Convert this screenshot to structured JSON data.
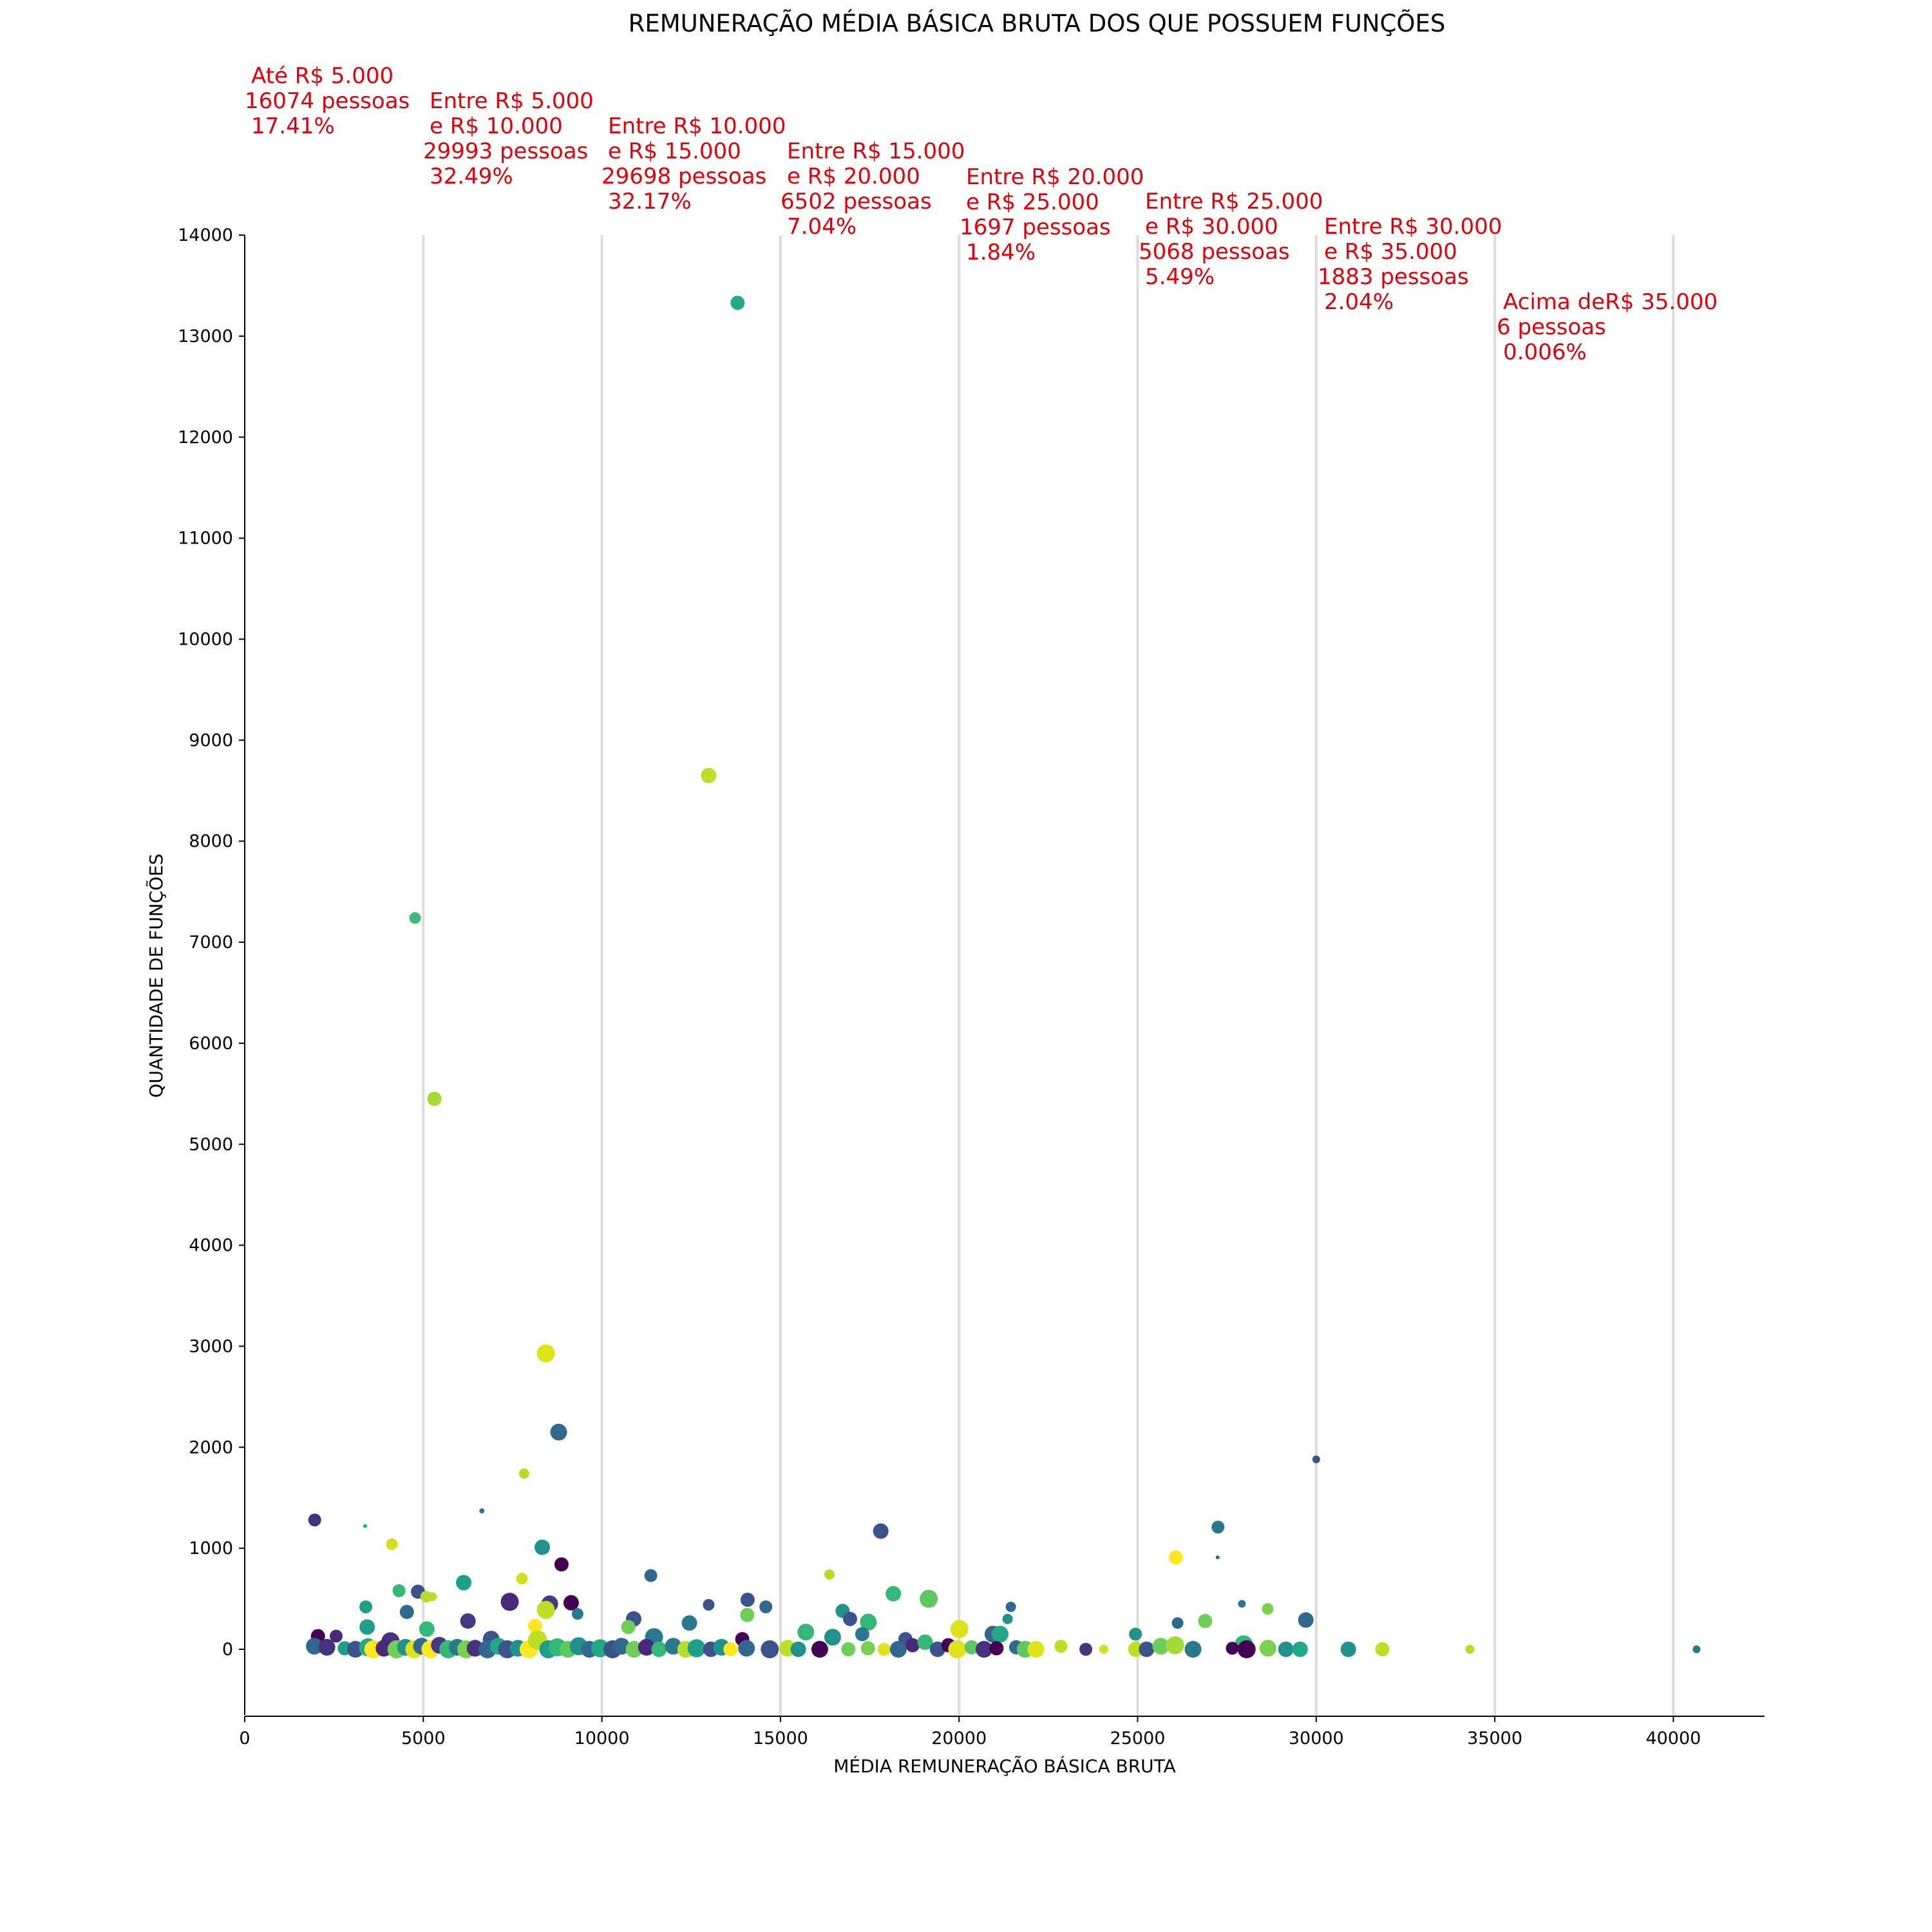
{
  "chart_data": {
    "type": "scatter",
    "title": "REMUNERAÇÃO MÉDIA BÁSICA BRUTA DOS QUE POSSUEM FUNÇÕES",
    "xlabel": "MÉDIA REMUNERAÇÃO BÁSICA BRUTA",
    "ylabel": "QUANTIDADE DE FUNÇÕES",
    "xlim": [
      0,
      42500
    ],
    "ylim": [
      -650,
      14000
    ],
    "xticks": [
      "0",
      "5000",
      "10000",
      "15000",
      "20000",
      "25000",
      "30000",
      "35000",
      "40000"
    ],
    "yticks": [
      "0",
      "1000",
      "2000",
      "3000",
      "4000",
      "5000",
      "6000",
      "7000",
      "8000",
      "9000",
      "10000",
      "11000",
      "12000",
      "13000",
      "14000"
    ],
    "grid": "vertical lines at 5000-step boundaries",
    "colormap": "viridis",
    "band_lines": [
      5000,
      10000,
      15000,
      20000,
      25000,
      30000,
      35000,
      40000
    ],
    "bands": [
      {
        "lines": [
          "Até R$ 5.000",
          "16074 pessoas",
          "17.41%"
        ]
      },
      {
        "lines": [
          "Entre R$ 5.000",
          "e R$ 10.000",
          "29993 pessoas",
          "32.49%"
        ]
      },
      {
        "lines": [
          "Entre R$ 10.000",
          "e R$ 15.000",
          "29698 pessoas",
          "32.17%"
        ]
      },
      {
        "lines": [
          "Entre R$ 15.000",
          "e R$ 20.000",
          "6502 pessoas",
          "7.04%"
        ]
      },
      {
        "lines": [
          "Entre R$ 20.000",
          "e R$ 25.000",
          "1697 pessoas",
          "1.84%"
        ]
      },
      {
        "lines": [
          "Entre R$ 25.000",
          "e R$ 30.000",
          "5068 pessoas",
          "5.49%"
        ]
      },
      {
        "lines": [
          "Entre R$ 30.000",
          "e R$ 35.000",
          "1883 pessoas",
          "2.04%"
        ]
      },
      {
        "lines": [
          "Acima deR$ 35.000",
          "6 pessoas",
          "0.006%"
        ]
      }
    ],
    "points": [
      {
        "x": 13800,
        "y": 13330,
        "s": 11,
        "c": "#22a884"
      },
      {
        "x": 12990,
        "y": 8650,
        "s": 12,
        "c": "#bddf26"
      },
      {
        "x": 4770,
        "y": 7240,
        "s": 9,
        "c": "#3fbc73"
      },
      {
        "x": 5310,
        "y": 5450,
        "s": 11,
        "c": "#a5db36"
      },
      {
        "x": 8430,
        "y": 2930,
        "s": 14,
        "c": "#dde318"
      },
      {
        "x": 8790,
        "y": 2150,
        "s": 13,
        "c": "#31688e"
      },
      {
        "x": 30000,
        "y": 1880,
        "s": 6,
        "c": "#3b528b"
      },
      {
        "x": 7820,
        "y": 1740,
        "s": 8,
        "c": "#b5de2b"
      },
      {
        "x": 1960,
        "y": 1280,
        "s": 10,
        "c": "#46327e"
      },
      {
        "x": 27250,
        "y": 1210,
        "s": 10,
        "c": "#2a788e"
      },
      {
        "x": 3370,
        "y": 1220,
        "s": 3,
        "c": "#22a884"
      },
      {
        "x": 6640,
        "y": 1370,
        "s": 4,
        "c": "#2a788e"
      },
      {
        "x": 17810,
        "y": 1170,
        "s": 12,
        "c": "#3b528b"
      },
      {
        "x": 4120,
        "y": 1040,
        "s": 9,
        "c": "#d0e11c"
      },
      {
        "x": 8330,
        "y": 1010,
        "s": 12,
        "c": "#21918c"
      },
      {
        "x": 26070,
        "y": 910,
        "s": 11,
        "c": "#fde725"
      },
      {
        "x": 27240,
        "y": 910,
        "s": 3,
        "c": "#31688e"
      },
      {
        "x": 8870,
        "y": 840,
        "s": 11,
        "c": "#440154"
      },
      {
        "x": 11370,
        "y": 730,
        "s": 10,
        "c": "#31688e"
      },
      {
        "x": 16370,
        "y": 740,
        "s": 8,
        "c": "#b5de2b"
      },
      {
        "x": 6130,
        "y": 660,
        "s": 12,
        "c": "#1f9e89"
      },
      {
        "x": 7760,
        "y": 700,
        "s": 9,
        "c": "#d0e11c"
      },
      {
        "x": 4320,
        "y": 580,
        "s": 10,
        "c": "#35b779"
      },
      {
        "x": 4850,
        "y": 570,
        "s": 11,
        "c": "#3b528b"
      },
      {
        "x": 18160,
        "y": 550,
        "s": 12,
        "c": "#35b779"
      },
      {
        "x": 19150,
        "y": 500,
        "s": 14,
        "c": "#5ec962"
      },
      {
        "x": 5080,
        "y": 520,
        "s": 9,
        "c": "#b5de2b"
      },
      {
        "x": 5250,
        "y": 520,
        "s": 7,
        "c": "#b5de2b"
      },
      {
        "x": 7420,
        "y": 470,
        "s": 14,
        "c": "#482878"
      },
      {
        "x": 8540,
        "y": 450,
        "s": 13,
        "c": "#443983"
      },
      {
        "x": 9140,
        "y": 460,
        "s": 12,
        "c": "#440154"
      },
      {
        "x": 14080,
        "y": 490,
        "s": 11,
        "c": "#3b528b"
      },
      {
        "x": 12990,
        "y": 440,
        "s": 9,
        "c": "#3b528b"
      },
      {
        "x": 14590,
        "y": 420,
        "s": 10,
        "c": "#31688e"
      },
      {
        "x": 21450,
        "y": 420,
        "s": 8,
        "c": "#31688e"
      },
      {
        "x": 27920,
        "y": 450,
        "s": 6,
        "c": "#2a788e"
      },
      {
        "x": 28640,
        "y": 400,
        "s": 9,
        "c": "#7ad151"
      },
      {
        "x": 3390,
        "y": 420,
        "s": 10,
        "c": "#1f9e89"
      },
      {
        "x": 4540,
        "y": 370,
        "s": 11,
        "c": "#31688e"
      },
      {
        "x": 8430,
        "y": 390,
        "s": 14,
        "c": "#bddf26"
      },
      {
        "x": 9320,
        "y": 350,
        "s": 9,
        "c": "#2a788e"
      },
      {
        "x": 14070,
        "y": 340,
        "s": 11,
        "c": "#6ece58"
      },
      {
        "x": 16740,
        "y": 380,
        "s": 11,
        "c": "#21918c"
      },
      {
        "x": 16950,
        "y": 300,
        "s": 11,
        "c": "#3b528b"
      },
      {
        "x": 21360,
        "y": 300,
        "s": 8,
        "c": "#21918c"
      },
      {
        "x": 29710,
        "y": 290,
        "s": 12,
        "c": "#31688e"
      },
      {
        "x": 26890,
        "y": 280,
        "s": 11,
        "c": "#6ece58"
      },
      {
        "x": 6250,
        "y": 280,
        "s": 12,
        "c": "#443983"
      },
      {
        "x": 10890,
        "y": 300,
        "s": 12,
        "c": "#3b528b"
      },
      {
        "x": 12450,
        "y": 260,
        "s": 12,
        "c": "#2a788e"
      },
      {
        "x": 17460,
        "y": 270,
        "s": 13,
        "c": "#35b779"
      },
      {
        "x": 26120,
        "y": 260,
        "s": 9,
        "c": "#31688e"
      },
      {
        "x": 3430,
        "y": 220,
        "s": 12,
        "c": "#1f9e89"
      },
      {
        "x": 5100,
        "y": 200,
        "s": 12,
        "c": "#35b779"
      },
      {
        "x": 8130,
        "y": 230,
        "s": 11,
        "c": "#fde725"
      },
      {
        "x": 10740,
        "y": 220,
        "s": 11,
        "c": "#6ece58"
      },
      {
        "x": 15710,
        "y": 170,
        "s": 13,
        "c": "#35b779"
      },
      {
        "x": 20010,
        "y": 200,
        "s": 14,
        "c": "#dde318"
      },
      {
        "x": 20950,
        "y": 150,
        "s": 13,
        "c": "#31688e"
      },
      {
        "x": 21150,
        "y": 150,
        "s": 13,
        "c": "#22a884"
      },
      {
        "x": 17290,
        "y": 150,
        "s": 11,
        "c": "#2a788e"
      },
      {
        "x": 24940,
        "y": 150,
        "s": 10,
        "c": "#21918c"
      },
      {
        "x": 27970,
        "y": 50,
        "s": 14,
        "c": "#35b779"
      },
      {
        "x": 2050,
        "y": 130,
        "s": 11,
        "c": "#440154"
      },
      {
        "x": 2560,
        "y": 130,
        "s": 10,
        "c": "#482878"
      },
      {
        "x": 4080,
        "y": 80,
        "s": 14,
        "c": "#46327e"
      },
      {
        "x": 6900,
        "y": 100,
        "s": 13,
        "c": "#3b528b"
      },
      {
        "x": 11460,
        "y": 120,
        "s": 14,
        "c": "#2a788e"
      },
      {
        "x": 13930,
        "y": 100,
        "s": 11,
        "c": "#440154"
      },
      {
        "x": 16460,
        "y": 120,
        "s": 13,
        "c": "#21918c"
      },
      {
        "x": 18500,
        "y": 100,
        "s": 11,
        "c": "#3b528b"
      },
      {
        "x": 1950,
        "y": 30,
        "s": 13,
        "c": "#31688e"
      },
      {
        "x": 2300,
        "y": 20,
        "s": 13,
        "c": "#46327e"
      },
      {
        "x": 2800,
        "y": 10,
        "s": 11,
        "c": "#1f9e89"
      },
      {
        "x": 3100,
        "y": 0,
        "s": 13,
        "c": "#3b528b"
      },
      {
        "x": 3450,
        "y": 20,
        "s": 14,
        "c": "#22a884"
      },
      {
        "x": 3600,
        "y": 0,
        "s": 14,
        "c": "#fde725"
      },
      {
        "x": 3900,
        "y": 10,
        "s": 13,
        "c": "#482878"
      },
      {
        "x": 4250,
        "y": 0,
        "s": 14,
        "c": "#6ece58"
      },
      {
        "x": 4500,
        "y": 20,
        "s": 13,
        "c": "#21918c"
      },
      {
        "x": 4750,
        "y": 0,
        "s": 14,
        "c": "#dde318"
      },
      {
        "x": 4950,
        "y": 30,
        "s": 13,
        "c": "#31688e"
      },
      {
        "x": 5200,
        "y": 0,
        "s": 14,
        "c": "#fde725"
      },
      {
        "x": 5450,
        "y": 40,
        "s": 13,
        "c": "#443983"
      },
      {
        "x": 5700,
        "y": 0,
        "s": 14,
        "c": "#35b779"
      },
      {
        "x": 5950,
        "y": 20,
        "s": 13,
        "c": "#2a788e"
      },
      {
        "x": 6200,
        "y": 0,
        "s": 14,
        "c": "#7ad151"
      },
      {
        "x": 6450,
        "y": 10,
        "s": 13,
        "c": "#46327e"
      },
      {
        "x": 6800,
        "y": 0,
        "s": 14,
        "c": "#31688e"
      },
      {
        "x": 7100,
        "y": 30,
        "s": 13,
        "c": "#22a884"
      },
      {
        "x": 7350,
        "y": 0,
        "s": 14,
        "c": "#3b528b"
      },
      {
        "x": 7650,
        "y": 10,
        "s": 13,
        "c": "#21918c"
      },
      {
        "x": 7950,
        "y": 0,
        "s": 14,
        "c": "#fde725"
      },
      {
        "x": 8200,
        "y": 90,
        "s": 15,
        "c": "#bddf26"
      },
      {
        "x": 8500,
        "y": 0,
        "s": 14,
        "c": "#1f9e89"
      },
      {
        "x": 8750,
        "y": 20,
        "s": 14,
        "c": "#35b779"
      },
      {
        "x": 9050,
        "y": 0,
        "s": 13,
        "c": "#5ec962"
      },
      {
        "x": 9350,
        "y": 30,
        "s": 14,
        "c": "#21918c"
      },
      {
        "x": 9650,
        "y": 0,
        "s": 13,
        "c": "#31688e"
      },
      {
        "x": 9950,
        "y": 10,
        "s": 14,
        "c": "#22a884"
      },
      {
        "x": 10300,
        "y": 0,
        "s": 14,
        "c": "#3b528b"
      },
      {
        "x": 10550,
        "y": 30,
        "s": 13,
        "c": "#31688e"
      },
      {
        "x": 10900,
        "y": 0,
        "s": 13,
        "c": "#6ece58"
      },
      {
        "x": 11250,
        "y": 20,
        "s": 13,
        "c": "#482878"
      },
      {
        "x": 11600,
        "y": 0,
        "s": 12,
        "c": "#35b779"
      },
      {
        "x": 12000,
        "y": 30,
        "s": 13,
        "c": "#2a788e"
      },
      {
        "x": 12350,
        "y": 0,
        "s": 13,
        "c": "#b5de2b"
      },
      {
        "x": 12650,
        "y": 10,
        "s": 14,
        "c": "#1f9e89"
      },
      {
        "x": 13050,
        "y": 0,
        "s": 12,
        "c": "#3b528b"
      },
      {
        "x": 13350,
        "y": 20,
        "s": 13,
        "c": "#21918c"
      },
      {
        "x": 13600,
        "y": 0,
        "s": 11,
        "c": "#fde725"
      },
      {
        "x": 14050,
        "y": 10,
        "s": 13,
        "c": "#31688e"
      },
      {
        "x": 14700,
        "y": 0,
        "s": 14,
        "c": "#3b528b"
      },
      {
        "x": 15200,
        "y": 10,
        "s": 13,
        "c": "#bddf26"
      },
      {
        "x": 15500,
        "y": 0,
        "s": 12,
        "c": "#21918c"
      },
      {
        "x": 16100,
        "y": 0,
        "s": 13,
        "c": "#440154"
      },
      {
        "x": 16900,
        "y": 0,
        "s": 11,
        "c": "#6ece58"
      },
      {
        "x": 17450,
        "y": 10,
        "s": 11,
        "c": "#7ad151"
      },
      {
        "x": 17900,
        "y": 0,
        "s": 10,
        "c": "#dde318"
      },
      {
        "x": 18300,
        "y": 0,
        "s": 13,
        "c": "#31688e"
      },
      {
        "x": 18700,
        "y": 40,
        "s": 11,
        "c": "#482878"
      },
      {
        "x": 19050,
        "y": 70,
        "s": 12,
        "c": "#35b779"
      },
      {
        "x": 19400,
        "y": 0,
        "s": 12,
        "c": "#3b528b"
      },
      {
        "x": 19700,
        "y": 40,
        "s": 11,
        "c": "#440154"
      },
      {
        "x": 19950,
        "y": 0,
        "s": 14,
        "c": "#dde318"
      },
      {
        "x": 20350,
        "y": 20,
        "s": 11,
        "c": "#5ec962"
      },
      {
        "x": 20700,
        "y": 0,
        "s": 13,
        "c": "#46327e"
      },
      {
        "x": 21050,
        "y": 10,
        "s": 11,
        "c": "#440154"
      },
      {
        "x": 21600,
        "y": 20,
        "s": 11,
        "c": "#31688e"
      },
      {
        "x": 21850,
        "y": 0,
        "s": 13,
        "c": "#5ec962"
      },
      {
        "x": 22150,
        "y": 0,
        "s": 13,
        "c": "#dde318"
      },
      {
        "x": 22850,
        "y": 30,
        "s": 10,
        "c": "#bddf26"
      },
      {
        "x": 23550,
        "y": 0,
        "s": 10,
        "c": "#46327e"
      },
      {
        "x": 24050,
        "y": 0,
        "s": 7,
        "c": "#d0e11c"
      },
      {
        "x": 24950,
        "y": 0,
        "s": 12,
        "c": "#bddf26"
      },
      {
        "x": 25250,
        "y": 0,
        "s": 12,
        "c": "#3b528b"
      },
      {
        "x": 25650,
        "y": 30,
        "s": 13,
        "c": "#6ece58"
      },
      {
        "x": 26050,
        "y": 40,
        "s": 14,
        "c": "#a5db36"
      },
      {
        "x": 26550,
        "y": 0,
        "s": 13,
        "c": "#2a788e"
      },
      {
        "x": 27650,
        "y": 10,
        "s": 10,
        "c": "#440154"
      },
      {
        "x": 28050,
        "y": 0,
        "s": 14,
        "c": "#440154"
      },
      {
        "x": 28650,
        "y": 10,
        "s": 13,
        "c": "#7ad151"
      },
      {
        "x": 29150,
        "y": 0,
        "s": 12,
        "c": "#21918c"
      },
      {
        "x": 29550,
        "y": 0,
        "s": 12,
        "c": "#22a884"
      },
      {
        "x": 30900,
        "y": 0,
        "s": 12,
        "c": "#21918c"
      },
      {
        "x": 31850,
        "y": 0,
        "s": 11,
        "c": "#bddf26"
      },
      {
        "x": 34300,
        "y": 0,
        "s": 7,
        "c": "#b5de2b"
      },
      {
        "x": 40650,
        "y": 0,
        "s": 6,
        "c": "#2a788e"
      }
    ]
  }
}
